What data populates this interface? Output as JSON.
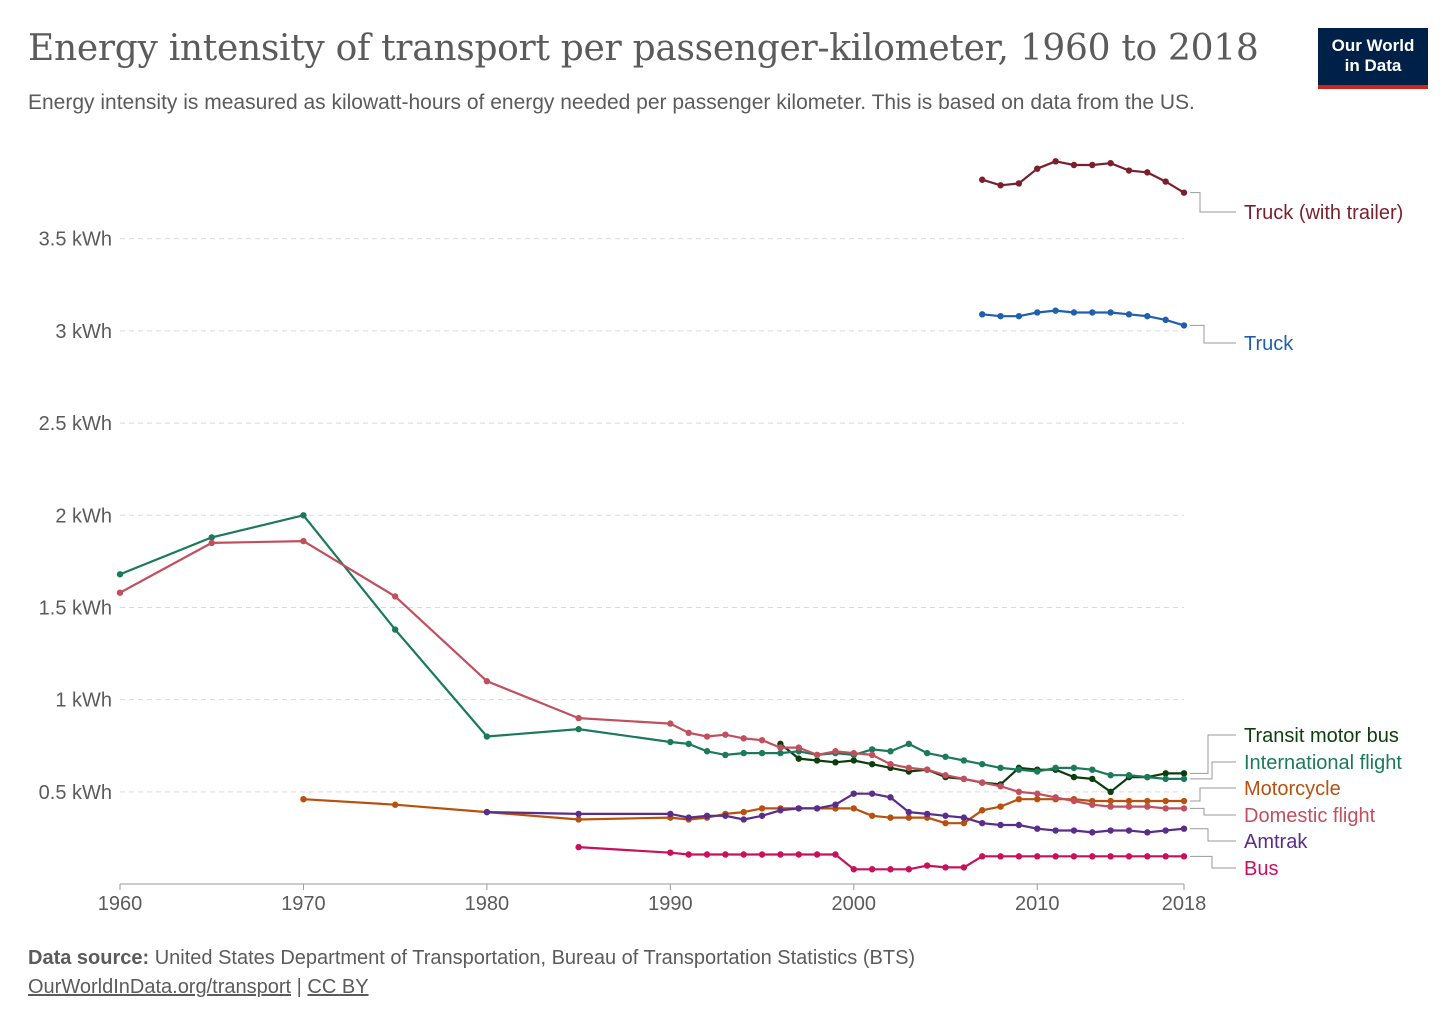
{
  "header": {
    "title": "Energy intensity of transport per passenger-kilometer, 1960 to 2018",
    "subtitle": "Energy intensity is measured as kilowatt-hours of energy needed per passenger kilometer. This is based on data from the US.",
    "logo_line1": "Our World",
    "logo_line2": "in Data"
  },
  "footer": {
    "source_label": "Data source:",
    "source_text": "United States Department of Transportation, Bureau of Transportation Statistics (BTS)",
    "link_text": "OurWorldInData.org/transport",
    "separator": "|",
    "license": "CC BY"
  },
  "chart_data": {
    "type": "line",
    "title": "Energy intensity of transport per passenger-kilometer, 1960 to 2018",
    "xlabel": "",
    "ylabel": "",
    "xlim": [
      1960,
      2018
    ],
    "ylim": [
      0,
      3.9
    ],
    "x_ticks": [
      1960,
      1970,
      1980,
      1990,
      2000,
      2010,
      2018
    ],
    "y_ticks": [
      {
        "value": 0.5,
        "label": "0.5 kWh"
      },
      {
        "value": 1,
        "label": "1 kWh"
      },
      {
        "value": 1.5,
        "label": "1.5 kWh"
      },
      {
        "value": 2,
        "label": "2 kWh"
      },
      {
        "value": 2.5,
        "label": "2.5 kWh"
      },
      {
        "value": 3,
        "label": "3 kWh"
      },
      {
        "value": 3.5,
        "label": "3.5 kWh"
      }
    ],
    "grid": "horizontal-dashed",
    "series": [
      {
        "name": "Truck (with trailer)",
        "color": "#7a1f2b",
        "x": [
          2007,
          2008,
          2009,
          2010,
          2011,
          2012,
          2013,
          2014,
          2015,
          2016,
          2017,
          2018
        ],
        "values": [
          3.82,
          3.79,
          3.8,
          3.88,
          3.92,
          3.9,
          3.9,
          3.91,
          3.87,
          3.86,
          3.81,
          3.75
        ]
      },
      {
        "name": "Truck",
        "color": "#1f5fb0",
        "x": [
          2007,
          2008,
          2009,
          2010,
          2011,
          2012,
          2013,
          2014,
          2015,
          2016,
          2017,
          2018
        ],
        "values": [
          3.09,
          3.08,
          3.08,
          3.1,
          3.11,
          3.1,
          3.1,
          3.1,
          3.09,
          3.08,
          3.06,
          3.03
        ]
      },
      {
        "name": "Transit motor bus",
        "color": "#0c3d0c",
        "x": [
          1996,
          1997,
          1998,
          1999,
          2000,
          2001,
          2002,
          2003,
          2004,
          2005,
          2006,
          2007,
          2008,
          2009,
          2010,
          2011,
          2012,
          2013,
          2014,
          2015,
          2016,
          2017,
          2018
        ],
        "values": [
          0.76,
          0.68,
          0.67,
          0.66,
          0.67,
          0.65,
          0.63,
          0.61,
          0.62,
          0.58,
          0.57,
          0.55,
          0.54,
          0.63,
          0.62,
          0.62,
          0.58,
          0.57,
          0.5,
          0.58,
          0.58,
          0.6,
          0.6
        ]
      },
      {
        "name": "International flight",
        "color": "#1b7a5a",
        "x": [
          1960,
          1965,
          1970,
          1975,
          1980,
          1985,
          1990,
          1991,
          1992,
          1993,
          1994,
          1995,
          1996,
          1997,
          1998,
          1999,
          2000,
          2001,
          2002,
          2003,
          2004,
          2005,
          2006,
          2007,
          2008,
          2009,
          2010,
          2011,
          2012,
          2013,
          2014,
          2015,
          2016,
          2017,
          2018
        ],
        "values": [
          1.68,
          1.88,
          2.0,
          1.38,
          0.8,
          0.84,
          0.77,
          0.76,
          0.72,
          0.7,
          0.71,
          0.71,
          0.71,
          0.72,
          0.7,
          0.71,
          0.7,
          0.73,
          0.72,
          0.76,
          0.71,
          0.69,
          0.67,
          0.65,
          0.63,
          0.62,
          0.61,
          0.63,
          0.63,
          0.62,
          0.59,
          0.59,
          0.58,
          0.57,
          0.57
        ]
      },
      {
        "name": "Motorcycle",
        "color": "#b8500e",
        "x": [
          1970,
          1975,
          1980,
          1985,
          1990,
          1991,
          1992,
          1993,
          1994,
          1995,
          1996,
          1997,
          1998,
          1999,
          2000,
          2001,
          2002,
          2003,
          2004,
          2005,
          2006,
          2007,
          2008,
          2009,
          2010,
          2011,
          2012,
          2013,
          2014,
          2015,
          2016,
          2017,
          2018
        ],
        "values": [
          0.46,
          0.43,
          0.39,
          0.35,
          0.36,
          0.35,
          0.36,
          0.38,
          0.39,
          0.41,
          0.41,
          0.41,
          0.41,
          0.41,
          0.41,
          0.37,
          0.36,
          0.36,
          0.36,
          0.33,
          0.33,
          0.4,
          0.42,
          0.46,
          0.46,
          0.46,
          0.46,
          0.45,
          0.45,
          0.45,
          0.45,
          0.45,
          0.45
        ]
      },
      {
        "name": "Domestic flight",
        "color": "#c0505e",
        "x": [
          1960,
          1965,
          1970,
          1975,
          1980,
          1985,
          1990,
          1991,
          1992,
          1993,
          1994,
          1995,
          1996,
          1997,
          1998,
          1999,
          2000,
          2001,
          2002,
          2003,
          2004,
          2005,
          2006,
          2007,
          2008,
          2009,
          2010,
          2011,
          2012,
          2013,
          2014,
          2015,
          2016,
          2017,
          2018
        ],
        "values": [
          1.58,
          1.85,
          1.86,
          1.56,
          1.1,
          0.9,
          0.87,
          0.82,
          0.8,
          0.81,
          0.79,
          0.78,
          0.74,
          0.74,
          0.7,
          0.72,
          0.71,
          0.7,
          0.65,
          0.63,
          0.62,
          0.59,
          0.57,
          0.55,
          0.53,
          0.5,
          0.49,
          0.47,
          0.45,
          0.43,
          0.42,
          0.42,
          0.42,
          0.41,
          0.41
        ]
      },
      {
        "name": "Amtrak",
        "color": "#5a2d8a",
        "x": [
          1980,
          1985,
          1990,
          1991,
          1992,
          1993,
          1994,
          1995,
          1996,
          1997,
          1998,
          1999,
          2000,
          2001,
          2002,
          2003,
          2004,
          2005,
          2006,
          2007,
          2008,
          2009,
          2010,
          2011,
          2012,
          2013,
          2014,
          2015,
          2016,
          2017,
          2018
        ],
        "values": [
          0.39,
          0.38,
          0.38,
          0.36,
          0.37,
          0.37,
          0.35,
          0.37,
          0.4,
          0.41,
          0.41,
          0.43,
          0.49,
          0.49,
          0.47,
          0.39,
          0.38,
          0.37,
          0.36,
          0.33,
          0.32,
          0.32,
          0.3,
          0.29,
          0.29,
          0.28,
          0.29,
          0.29,
          0.28,
          0.29,
          0.3
        ]
      },
      {
        "name": "Bus",
        "color": "#c8105c",
        "x": [
          1985,
          1990,
          1991,
          1992,
          1993,
          1994,
          1995,
          1996,
          1997,
          1998,
          1999,
          2000,
          2001,
          2002,
          2003,
          2004,
          2005,
          2006,
          2007,
          2008,
          2009,
          2010,
          2011,
          2012,
          2013,
          2014,
          2015,
          2016,
          2017,
          2018
        ],
        "values": [
          0.2,
          0.17,
          0.16,
          0.16,
          0.16,
          0.16,
          0.16,
          0.16,
          0.16,
          0.16,
          0.16,
          0.08,
          0.08,
          0.08,
          0.08,
          0.1,
          0.09,
          0.09,
          0.15,
          0.15,
          0.15,
          0.15,
          0.15,
          0.15,
          0.15,
          0.15,
          0.15,
          0.15,
          0.15,
          0.15
        ]
      }
    ],
    "labels_order": [
      "Truck (with trailer)",
      "Truck",
      "Transit motor bus",
      "International flight",
      "Motorcycle",
      "Domestic flight",
      "Amtrak",
      "Bus"
    ]
  }
}
